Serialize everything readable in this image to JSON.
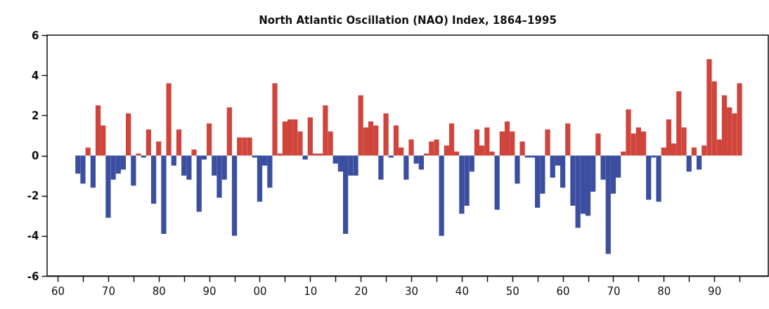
{
  "chart_data": {
    "type": "bar",
    "title": "North Atlantic Oscillation (NAO) Index, 1864–1995",
    "x": [
      1864,
      1865,
      1866,
      1867,
      1868,
      1869,
      1870,
      1871,
      1872,
      1873,
      1874,
      1875,
      1876,
      1877,
      1878,
      1879,
      1880,
      1881,
      1882,
      1883,
      1884,
      1885,
      1886,
      1887,
      1888,
      1889,
      1890,
      1891,
      1892,
      1893,
      1894,
      1895,
      1896,
      1897,
      1898,
      1899,
      1900,
      1901,
      1902,
      1903,
      1904,
      1905,
      1906,
      1907,
      1908,
      1909,
      1910,
      1911,
      1912,
      1913,
      1914,
      1915,
      1916,
      1917,
      1918,
      1919,
      1920,
      1921,
      1922,
      1923,
      1924,
      1925,
      1926,
      1927,
      1928,
      1929,
      1930,
      1931,
      1932,
      1933,
      1934,
      1935,
      1936,
      1937,
      1938,
      1939,
      1940,
      1941,
      1942,
      1943,
      1944,
      1945,
      1946,
      1947,
      1948,
      1949,
      1950,
      1951,
      1952,
      1953,
      1954,
      1955,
      1956,
      1957,
      1958,
      1959,
      1960,
      1961,
      1962,
      1963,
      1964,
      1965,
      1966,
      1967,
      1968,
      1969,
      1970,
      1971,
      1972,
      1973,
      1974,
      1975,
      1976,
      1977,
      1978,
      1979,
      1980,
      1981,
      1982,
      1983,
      1984,
      1985,
      1986,
      1987,
      1988,
      1989,
      1990,
      1991,
      1992,
      1993,
      1994,
      1995
    ],
    "values": [
      -0.9,
      -1.4,
      0.4,
      -1.6,
      2.5,
      1.5,
      -3.1,
      -1.2,
      -0.9,
      -0.7,
      2.1,
      -1.5,
      0.1,
      -0.1,
      1.3,
      -2.4,
      0.7,
      -3.9,
      3.6,
      -0.5,
      1.3,
      -1.0,
      -1.2,
      0.3,
      -2.8,
      -0.2,
      1.6,
      -1.0,
      -2.1,
      -1.2,
      2.4,
      -4.0,
      0.9,
      0.9,
      0.9,
      -0.1,
      -2.3,
      -0.5,
      -1.6,
      3.6,
      0.1,
      1.7,
      1.8,
      1.8,
      1.2,
      -0.2,
      1.9,
      0.1,
      0.1,
      2.5,
      1.2,
      -0.4,
      -0.8,
      -3.9,
      -1.0,
      -1.0,
      3.0,
      1.4,
      1.7,
      1.5,
      -1.2,
      2.1,
      -0.1,
      1.5,
      0.4,
      -1.2,
      0.8,
      -0.4,
      -0.7,
      0.1,
      0.7,
      0.8,
      -4.0,
      0.5,
      1.6,
      0.2,
      -2.9,
      -2.5,
      -0.8,
      1.3,
      0.5,
      1.4,
      0.2,
      -2.7,
      1.2,
      1.7,
      1.2,
      -1.4,
      0.7,
      -0.1,
      -0.1,
      -2.6,
      -1.9,
      1.3,
      -1.1,
      -0.5,
      -1.6,
      1.6,
      -2.5,
      -3.6,
      -2.9,
      -3.0,
      -1.8,
      1.1,
      -1.2,
      -4.9,
      -1.9,
      -1.1,
      0.2,
      2.3,
      1.1,
      1.4,
      1.2,
      -2.2,
      -0.1,
      -2.3,
      0.4,
      1.8,
      0.6,
      3.2,
      1.4,
      -0.8,
      0.4,
      -0.7,
      0.5,
      4.8,
      3.7,
      0.8,
      3.0,
      2.4,
      2.1,
      3.6
    ],
    "colors": [
      "#3b4ea0",
      "#3b4ea0",
      "#d0453b",
      "#3b4ea0",
      "#d0453b",
      "#d0453b",
      "#3b4ea0",
      "#3b4ea0",
      "#3b4ea0",
      "#3b4ea0",
      "#d0453b",
      "#3b4ea0",
      "#d0453b",
      "#3b4ea0",
      "#d0453b",
      "#3b4ea0",
      "#d0453b",
      "#3b4ea0",
      "#d0453b",
      "#3b4ea0",
      "#d0453b",
      "#3b4ea0",
      "#3b4ea0",
      "#d0453b",
      "#3b4ea0",
      "#3b4ea0",
      "#d0453b",
      "#3b4ea0",
      "#3b4ea0",
      "#3b4ea0",
      "#d0453b",
      "#3b4ea0",
      "#d0453b",
      "#d0453b",
      "#d0453b",
      "#3b4ea0",
      "#3b4ea0",
      "#3b4ea0",
      "#3b4ea0",
      "#d0453b",
      "#d0453b",
      "#d0453b",
      "#d0453b",
      "#d0453b",
      "#d0453b",
      "#3b4ea0",
      "#d0453b",
      "#d0453b",
      "#d0453b",
      "#d0453b",
      "#d0453b",
      "#3b4ea0",
      "#3b4ea0",
      "#3b4ea0",
      "#3b4ea0",
      "#3b4ea0",
      "#d0453b",
      "#d0453b",
      "#d0453b",
      "#d0453b",
      "#3b4ea0",
      "#d0453b",
      "#3b4ea0",
      "#d0453b",
      "#d0453b",
      "#3b4ea0",
      "#d0453b",
      "#3b4ea0",
      "#3b4ea0",
      "#d0453b",
      "#d0453b",
      "#d0453b",
      "#3b4ea0",
      "#d0453b",
      "#d0453b",
      "#d0453b",
      "#3b4ea0",
      "#3b4ea0",
      "#3b4ea0",
      "#d0453b",
      "#d0453b",
      "#d0453b",
      "#d0453b",
      "#3b4ea0",
      "#d0453b",
      "#d0453b",
      "#d0453b",
      "#3b4ea0",
      "#d0453b",
      "#3b4ea0",
      "#3b4ea0",
      "#3b4ea0",
      "#3b4ea0",
      "#d0453b",
      "#3b4ea0",
      "#3b4ea0",
      "#3b4ea0",
      "#d0453b",
      "#3b4ea0",
      "#3b4ea0",
      "#3b4ea0",
      "#3b4ea0",
      "#3b4ea0",
      "#d0453b",
      "#3b4ea0",
      "#3b4ea0",
      "#3b4ea0",
      "#3b4ea0",
      "#d0453b",
      "#d0453b",
      "#d0453b",
      "#d0453b",
      "#d0453b",
      "#3b4ea0",
      "#3b4ea0",
      "#3b4ea0",
      "#d0453b",
      "#d0453b",
      "#d0453b",
      "#d0453b",
      "#d0453b",
      "#3b4ea0",
      "#d0453b",
      "#3b4ea0",
      "#d0453b",
      "#d0453b",
      "#d0453b",
      "#d0453b",
      "#d0453b",
      "#d0453b",
      "#d0453b",
      "#d0453b"
    ],
    "xlim": [
      1858.6,
      2000
    ],
    "xticks": [
      {
        "value": 1860,
        "label": "60"
      },
      {
        "value": 1865,
        "label": null
      },
      {
        "value": 1870,
        "label": "70"
      },
      {
        "value": 1875,
        "label": null
      },
      {
        "value": 1880,
        "label": "80"
      },
      {
        "value": 1885,
        "label": null
      },
      {
        "value": 1890,
        "label": "90"
      },
      {
        "value": 1895,
        "label": null
      },
      {
        "value": 1900,
        "label": "00"
      },
      {
        "value": 1905,
        "label": null
      },
      {
        "value": 1910,
        "label": "10"
      },
      {
        "value": 1915,
        "label": null
      },
      {
        "value": 1920,
        "label": "20"
      },
      {
        "value": 1925,
        "label": null
      },
      {
        "value": 1930,
        "label": "30"
      },
      {
        "value": 1935,
        "label": null
      },
      {
        "value": 1940,
        "label": "40"
      },
      {
        "value": 1945,
        "label": null
      },
      {
        "value": 1950,
        "label": "50"
      },
      {
        "value": 1955,
        "label": null
      },
      {
        "value": 1960,
        "label": "60"
      },
      {
        "value": 1965,
        "label": null
      },
      {
        "value": 1970,
        "label": "70"
      },
      {
        "value": 1975,
        "label": null
      },
      {
        "value": 1980,
        "label": "80"
      },
      {
        "value": 1985,
        "label": null
      },
      {
        "value": 1990,
        "label": "90"
      },
      {
        "value": 1995,
        "label": null
      }
    ],
    "ylim": [
      -6,
      6
    ],
    "yticks": [
      -6,
      -4,
      -2,
      0,
      2,
      4,
      6
    ],
    "grid": false
  }
}
